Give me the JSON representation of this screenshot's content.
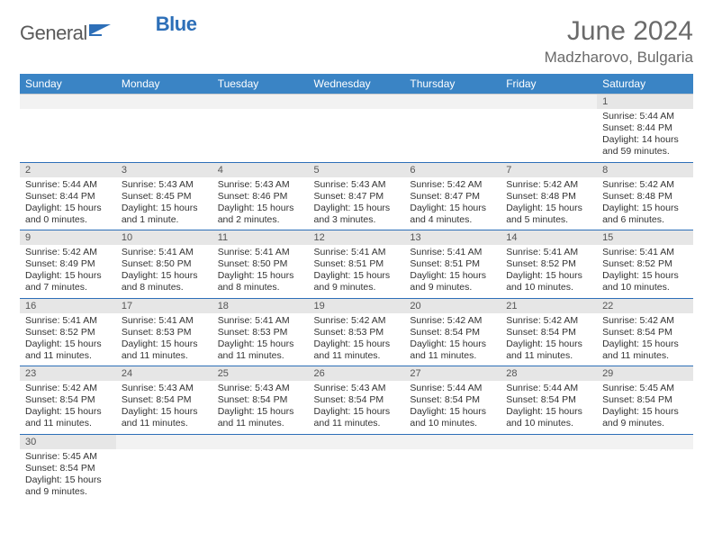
{
  "brand": {
    "name_gray": "General",
    "name_blue": "Blue"
  },
  "title": "June 2024",
  "location": "Madzharovo, Bulgaria",
  "colors": {
    "header_bg": "#3a84c5",
    "header_text": "#ffffff",
    "daynum_bg": "#e6e6e6",
    "divider": "#2d6fb8",
    "text": "#333333",
    "title_text": "#6a6a6a"
  },
  "day_headers": [
    "Sunday",
    "Monday",
    "Tuesday",
    "Wednesday",
    "Thursday",
    "Friday",
    "Saturday"
  ],
  "weeks": [
    [
      null,
      null,
      null,
      null,
      null,
      null,
      {
        "n": "1",
        "sr": "5:44 AM",
        "ss": "8:44 PM",
        "dl": "14 hours and 59 minutes."
      }
    ],
    [
      {
        "n": "2",
        "sr": "5:44 AM",
        "ss": "8:44 PM",
        "dl": "15 hours and 0 minutes."
      },
      {
        "n": "3",
        "sr": "5:43 AM",
        "ss": "8:45 PM",
        "dl": "15 hours and 1 minute."
      },
      {
        "n": "4",
        "sr": "5:43 AM",
        "ss": "8:46 PM",
        "dl": "15 hours and 2 minutes."
      },
      {
        "n": "5",
        "sr": "5:43 AM",
        "ss": "8:47 PM",
        "dl": "15 hours and 3 minutes."
      },
      {
        "n": "6",
        "sr": "5:42 AM",
        "ss": "8:47 PM",
        "dl": "15 hours and 4 minutes."
      },
      {
        "n": "7",
        "sr": "5:42 AM",
        "ss": "8:48 PM",
        "dl": "15 hours and 5 minutes."
      },
      {
        "n": "8",
        "sr": "5:42 AM",
        "ss": "8:48 PM",
        "dl": "15 hours and 6 minutes."
      }
    ],
    [
      {
        "n": "9",
        "sr": "5:42 AM",
        "ss": "8:49 PM",
        "dl": "15 hours and 7 minutes."
      },
      {
        "n": "10",
        "sr": "5:41 AM",
        "ss": "8:50 PM",
        "dl": "15 hours and 8 minutes."
      },
      {
        "n": "11",
        "sr": "5:41 AM",
        "ss": "8:50 PM",
        "dl": "15 hours and 8 minutes."
      },
      {
        "n": "12",
        "sr": "5:41 AM",
        "ss": "8:51 PM",
        "dl": "15 hours and 9 minutes."
      },
      {
        "n": "13",
        "sr": "5:41 AM",
        "ss": "8:51 PM",
        "dl": "15 hours and 9 minutes."
      },
      {
        "n": "14",
        "sr": "5:41 AM",
        "ss": "8:52 PM",
        "dl": "15 hours and 10 minutes."
      },
      {
        "n": "15",
        "sr": "5:41 AM",
        "ss": "8:52 PM",
        "dl": "15 hours and 10 minutes."
      }
    ],
    [
      {
        "n": "16",
        "sr": "5:41 AM",
        "ss": "8:52 PM",
        "dl": "15 hours and 11 minutes."
      },
      {
        "n": "17",
        "sr": "5:41 AM",
        "ss": "8:53 PM",
        "dl": "15 hours and 11 minutes."
      },
      {
        "n": "18",
        "sr": "5:41 AM",
        "ss": "8:53 PM",
        "dl": "15 hours and 11 minutes."
      },
      {
        "n": "19",
        "sr": "5:42 AM",
        "ss": "8:53 PM",
        "dl": "15 hours and 11 minutes."
      },
      {
        "n": "20",
        "sr": "5:42 AM",
        "ss": "8:54 PM",
        "dl": "15 hours and 11 minutes."
      },
      {
        "n": "21",
        "sr": "5:42 AM",
        "ss": "8:54 PM",
        "dl": "15 hours and 11 minutes."
      },
      {
        "n": "22",
        "sr": "5:42 AM",
        "ss": "8:54 PM",
        "dl": "15 hours and 11 minutes."
      }
    ],
    [
      {
        "n": "23",
        "sr": "5:42 AM",
        "ss": "8:54 PM",
        "dl": "15 hours and 11 minutes."
      },
      {
        "n": "24",
        "sr": "5:43 AM",
        "ss": "8:54 PM",
        "dl": "15 hours and 11 minutes."
      },
      {
        "n": "25",
        "sr": "5:43 AM",
        "ss": "8:54 PM",
        "dl": "15 hours and 11 minutes."
      },
      {
        "n": "26",
        "sr": "5:43 AM",
        "ss": "8:54 PM",
        "dl": "15 hours and 11 minutes."
      },
      {
        "n": "27",
        "sr": "5:44 AM",
        "ss": "8:54 PM",
        "dl": "15 hours and 10 minutes."
      },
      {
        "n": "28",
        "sr": "5:44 AM",
        "ss": "8:54 PM",
        "dl": "15 hours and 10 minutes."
      },
      {
        "n": "29",
        "sr": "5:45 AM",
        "ss": "8:54 PM",
        "dl": "15 hours and 9 minutes."
      }
    ],
    [
      {
        "n": "30",
        "sr": "5:45 AM",
        "ss": "8:54 PM",
        "dl": "15 hours and 9 minutes."
      },
      null,
      null,
      null,
      null,
      null,
      null
    ]
  ],
  "labels": {
    "sunrise": "Sunrise:",
    "sunset": "Sunset:",
    "daylight": "Daylight:"
  }
}
